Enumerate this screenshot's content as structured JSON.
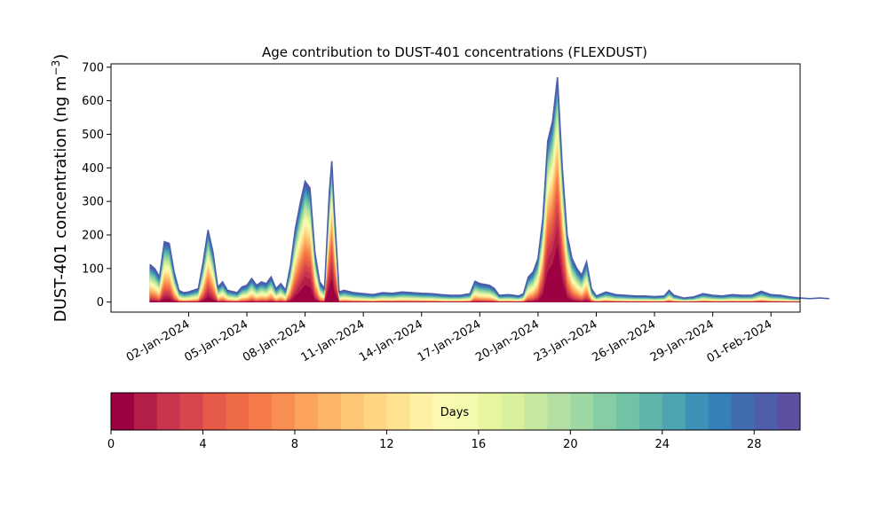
{
  "chart_data": {
    "type": "area",
    "stacked": true,
    "title": "Age contribution to DUST-401 concentrations (FLEXDUST)",
    "ylabel_main": "DUST-401 concentration (ng m",
    "ylabel_sup": "−3",
    "ylabel_close": ")",
    "xlabel": "",
    "ylim": [
      -30,
      710
    ],
    "yticks": [
      0,
      100,
      200,
      300,
      400,
      500,
      600,
      700
    ],
    "ytick_labels": [
      "0",
      "100",
      "200",
      "300",
      "400",
      "500",
      "600",
      "700"
    ],
    "x_start": "2023-12-29T00:00",
    "x_end": "2024-02-02T12:00",
    "xticks": [
      "2024-01-02",
      "2024-01-05",
      "2024-01-08",
      "2024-01-11",
      "2024-01-14",
      "2024-01-17",
      "2024-01-20",
      "2024-01-23",
      "2024-01-26",
      "2024-01-29",
      "2024-02-01"
    ],
    "xtick_labels": [
      "02-Jan-2024",
      "05-Jan-2024",
      "08-Jan-2024",
      "11-Jan-2024",
      "14-Jan-2024",
      "17-Jan-2024",
      "20-Jan-2024",
      "23-Jan-2024",
      "26-Jan-2024",
      "29-Jan-2024",
      "01-Feb-2024"
    ],
    "total_concentration": [
      [
        "2023-12-31T00:00",
        112
      ],
      [
        "2023-12-31T06:00",
        100
      ],
      [
        "2023-12-31T12:00",
        75
      ],
      [
        "2023-12-31T18:00",
        180
      ],
      [
        "2024-01-01T00:00",
        175
      ],
      [
        "2024-01-01T06:00",
        90
      ],
      [
        "2024-01-01T12:00",
        35
      ],
      [
        "2024-01-01T18:00",
        28
      ],
      [
        "2024-01-02T00:00",
        30
      ],
      [
        "2024-01-02T12:00",
        40
      ],
      [
        "2024-01-02T18:00",
        120
      ],
      [
        "2024-01-03T00:00",
        215
      ],
      [
        "2024-01-03T06:00",
        150
      ],
      [
        "2024-01-03T12:00",
        45
      ],
      [
        "2024-01-03T18:00",
        60
      ],
      [
        "2024-01-04T00:00",
        35
      ],
      [
        "2024-01-04T12:00",
        28
      ],
      [
        "2024-01-04T18:00",
        45
      ],
      [
        "2024-01-05T00:00",
        50
      ],
      [
        "2024-01-05T06:00",
        70
      ],
      [
        "2024-01-05T12:00",
        50
      ],
      [
        "2024-01-05T18:00",
        60
      ],
      [
        "2024-01-06T00:00",
        55
      ],
      [
        "2024-01-06T06:00",
        75
      ],
      [
        "2024-01-06T12:00",
        40
      ],
      [
        "2024-01-06T18:00",
        55
      ],
      [
        "2024-01-07T00:00",
        35
      ],
      [
        "2024-01-07T06:00",
        110
      ],
      [
        "2024-01-07T12:00",
        220
      ],
      [
        "2024-01-07T18:00",
        295
      ],
      [
        "2024-01-08T00:00",
        360
      ],
      [
        "2024-01-08T06:00",
        340
      ],
      [
        "2024-01-08T12:00",
        150
      ],
      [
        "2024-01-08T18:00",
        60
      ],
      [
        "2024-01-09T00:00",
        40
      ],
      [
        "2024-01-09T06:00",
        330
      ],
      [
        "2024-01-09T09:00",
        420
      ],
      [
        "2024-01-09T12:00",
        280
      ],
      [
        "2024-01-09T18:00",
        30
      ],
      [
        "2024-01-10T00:00",
        35
      ],
      [
        "2024-01-10T12:00",
        28
      ],
      [
        "2024-01-11T00:00",
        25
      ],
      [
        "2024-01-11T12:00",
        22
      ],
      [
        "2024-01-12T00:00",
        28
      ],
      [
        "2024-01-12T12:00",
        26
      ],
      [
        "2024-01-13T00:00",
        30
      ],
      [
        "2024-01-13T12:00",
        28
      ],
      [
        "2024-01-14T00:00",
        26
      ],
      [
        "2024-01-14T12:00",
        25
      ],
      [
        "2024-01-15T00:00",
        22
      ],
      [
        "2024-01-15T12:00",
        20
      ],
      [
        "2024-01-16T00:00",
        20
      ],
      [
        "2024-01-16T12:00",
        25
      ],
      [
        "2024-01-16T18:00",
        62
      ],
      [
        "2024-01-17T00:00",
        55
      ],
      [
        "2024-01-17T12:00",
        50
      ],
      [
        "2024-01-17T18:00",
        40
      ],
      [
        "2024-01-18T00:00",
        20
      ],
      [
        "2024-01-18T12:00",
        22
      ],
      [
        "2024-01-19T00:00",
        18
      ],
      [
        "2024-01-19T06:00",
        25
      ],
      [
        "2024-01-19T12:00",
        75
      ],
      [
        "2024-01-19T18:00",
        90
      ],
      [
        "2024-01-20T00:00",
        130
      ],
      [
        "2024-01-20T06:00",
        250
      ],
      [
        "2024-01-20T12:00",
        480
      ],
      [
        "2024-01-20T18:00",
        540
      ],
      [
        "2024-01-21T00:00",
        670
      ],
      [
        "2024-01-21T06:00",
        400
      ],
      [
        "2024-01-21T12:00",
        200
      ],
      [
        "2024-01-21T18:00",
        130
      ],
      [
        "2024-01-22T00:00",
        100
      ],
      [
        "2024-01-22T06:00",
        80
      ],
      [
        "2024-01-22T12:00",
        120
      ],
      [
        "2024-01-22T18:00",
        40
      ],
      [
        "2024-01-23T00:00",
        18
      ],
      [
        "2024-01-23T12:00",
        30
      ],
      [
        "2024-01-24T00:00",
        22
      ],
      [
        "2024-01-24T12:00",
        20
      ],
      [
        "2024-01-25T00:00",
        18
      ],
      [
        "2024-01-25T12:00",
        18
      ],
      [
        "2024-01-26T00:00",
        16
      ],
      [
        "2024-01-26T12:00",
        18
      ],
      [
        "2024-01-26T18:00",
        35
      ],
      [
        "2024-01-27T00:00",
        20
      ],
      [
        "2024-01-27T12:00",
        12
      ],
      [
        "2024-01-28T00:00",
        15
      ],
      [
        "2024-01-28T12:00",
        25
      ],
      [
        "2024-01-29T00:00",
        20
      ],
      [
        "2024-01-29T12:00",
        18
      ],
      [
        "2024-01-30T00:00",
        22
      ],
      [
        "2024-01-30T12:00",
        20
      ],
      [
        "2024-01-31T00:00",
        20
      ],
      [
        "2024-01-31T12:00",
        32
      ],
      [
        "2024-02-01T00:00",
        22
      ],
      [
        "2024-02-01T12:00",
        20
      ],
      [
        "2024-02-02T00:00",
        15
      ],
      [
        "2024-02-02T12:00",
        12
      ],
      [
        "2024-02-03T00:00",
        10
      ],
      [
        "2024-02-03T12:00",
        12
      ],
      [
        "2024-02-04T00:00",
        10
      ]
    ],
    "colorbar": {
      "label": "Days",
      "min": 0,
      "max": 30,
      "ticks": [
        0,
        4,
        8,
        12,
        16,
        20,
        24,
        28
      ],
      "tick_labels": [
        "0",
        "4",
        "8",
        "12",
        "16",
        "20",
        "24",
        "28"
      ],
      "colormap": "Spectral",
      "colors": [
        "#9e0142",
        "#b41f48",
        "#ca344d",
        "#d8464d",
        "#e55a49",
        "#ee6a45",
        "#f67b4b",
        "#f98e53",
        "#fca35d",
        "#fdb567",
        "#fec574",
        "#fed582",
        "#fee291",
        "#fef0a4",
        "#fbf9b0",
        "#f3faae",
        "#e7f59f",
        "#d8ef9b",
        "#c5e79f",
        "#b3e0a2",
        "#9dd7a4",
        "#86cda5",
        "#71c3a6",
        "#5eb4a9",
        "#4ea4b0",
        "#3f92b6",
        "#3680b8",
        "#3f6db0",
        "#4e5eab",
        "#5e4fa2"
      ]
    }
  }
}
